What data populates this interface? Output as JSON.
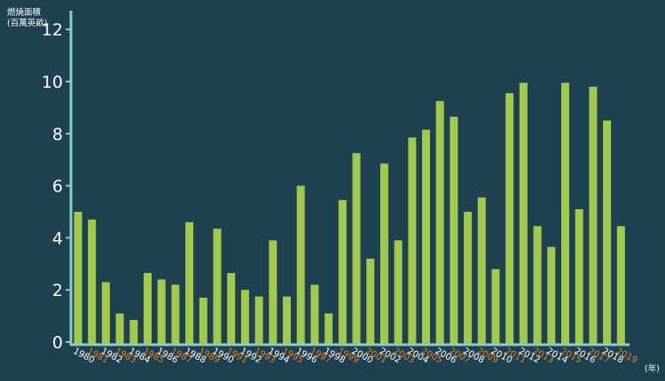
{
  "chart_data": {
    "type": "bar",
    "ylabel_lines": [
      "燃燒面積",
      "(百萬英畝)"
    ],
    "xunit": "(年)",
    "ylim": [
      0,
      12.5
    ],
    "yticks": [
      0,
      2,
      4,
      6,
      8,
      10,
      12
    ],
    "categories": [
      "1980",
      "1981",
      "1982",
      "1983",
      "1984",
      "1985",
      "1986",
      "1987",
      "1988",
      "1989",
      "1990",
      "1991",
      "1992",
      "1993",
      "1994",
      "1995",
      "1996",
      "1997",
      "1998",
      "1999",
      "2000",
      "2001",
      "2002",
      "2003",
      "2004",
      "2005",
      "2006",
      "2007",
      "2008",
      "2009",
      "2010",
      "2011",
      "2012",
      "2013",
      "2014",
      "2015",
      "2016",
      "2017",
      "2018",
      "2019"
    ],
    "values": [
      5.0,
      4.7,
      2.3,
      1.1,
      0.85,
      2.65,
      2.4,
      2.2,
      4.6,
      1.7,
      4.35,
      2.65,
      2.0,
      1.75,
      3.9,
      1.75,
      6.0,
      2.2,
      1.1,
      5.45,
      7.25,
      3.2,
      6.85,
      3.9,
      7.85,
      8.15,
      9.25,
      8.65,
      5.0,
      5.55,
      2.8,
      9.55,
      9.95,
      4.45,
      3.65,
      9.95,
      5.1,
      9.8,
      8.5,
      4.45
    ],
    "colors": {
      "background": "#1e4152",
      "bar": "#a2c94c",
      "axis": "#8ecdc6",
      "tick_even": "#ffffff",
      "tick_odd": "#ee7e1a"
    }
  }
}
